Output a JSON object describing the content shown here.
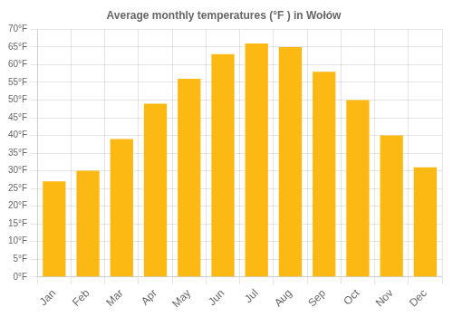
{
  "chart_data": {
    "type": "bar",
    "title": "Average monthly temperatures (°F ) in Wołów",
    "categories": [
      "Jan",
      "Feb",
      "Mar",
      "Apr",
      "May",
      "Jun",
      "Jul",
      "Aug",
      "Sep",
      "Oct",
      "Nov",
      "Dec"
    ],
    "values": [
      27,
      30,
      39,
      49,
      56,
      63,
      66,
      65,
      58,
      50,
      40,
      31
    ],
    "color": "#FDB913",
    "ylim": [
      0,
      70
    ],
    "yticks": [
      {
        "value": 0,
        "label": "0°F"
      },
      {
        "value": 5,
        "label": "5°F"
      },
      {
        "value": 10,
        "label": "10°F"
      },
      {
        "value": 15,
        "label": "15°F"
      },
      {
        "value": 20,
        "label": "20°F"
      },
      {
        "value": 25,
        "label": "25°F"
      },
      {
        "value": 30,
        "label": "30°F"
      },
      {
        "value": 35,
        "label": "35°F"
      },
      {
        "value": 40,
        "label": "40°F"
      },
      {
        "value": 45,
        "label": "45°F"
      },
      {
        "value": 50,
        "label": "50°F"
      },
      {
        "value": 55,
        "label": "55°F"
      },
      {
        "value": 60,
        "label": "60°F"
      },
      {
        "value": 65,
        "label": "65°F"
      },
      {
        "value": 70,
        "label": "70°F"
      }
    ],
    "grid": true
  }
}
